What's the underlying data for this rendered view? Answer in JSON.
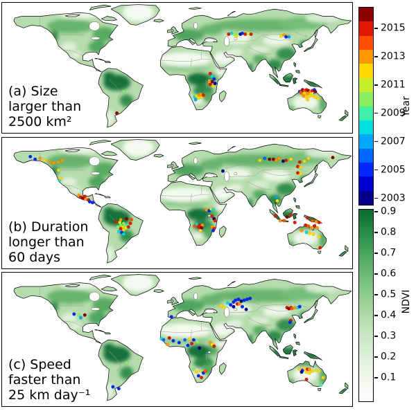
{
  "chart_data": {
    "type": "map-scatter",
    "projection": "equirectangular",
    "lon_range": [
      -180,
      180
    ],
    "lat_range": [
      -60,
      85
    ],
    "description": "Three world maps with NDVI background shading (greens) and event locations plotted as dots colored by year of occurrence.",
    "panels": [
      {
        "id": "a",
        "caption_lines": [
          "(a) Size",
          "larger than",
          "2500 km²"
        ],
        "dots": [
          [
            34,
            6,
            2015
          ],
          [
            36,
            3,
            2008
          ],
          [
            38,
            0,
            2005
          ],
          [
            36,
            -3,
            2016
          ],
          [
            34,
            -6,
            2015
          ],
          [
            37,
            -8,
            2012
          ],
          [
            33,
            -3,
            2013
          ],
          [
            39,
            -5,
            2003
          ],
          [
            18,
            -20,
            2008
          ],
          [
            20,
            -19,
            2012
          ],
          [
            23,
            -19,
            2013
          ],
          [
            25,
            -20,
            2012
          ],
          [
            22,
            -21,
            2012
          ],
          [
            19,
            -23,
            2007
          ],
          [
            27,
            -18,
            2015
          ],
          [
            24,
            -17,
            2013
          ],
          [
            -55,
            -14,
            2010
          ],
          [
            -62,
            -38,
            2016
          ],
          [
            53,
            50,
            2015
          ],
          [
            56,
            51,
            2008
          ],
          [
            59,
            50,
            2010
          ],
          [
            62,
            51,
            2010
          ],
          [
            65,
            50,
            2003
          ],
          [
            67,
            51,
            2005
          ],
          [
            70,
            50,
            2015
          ],
          [
            73,
            51,
            2011
          ],
          [
            61,
            48,
            2012
          ],
          [
            76,
            50,
            2015
          ],
          [
            107,
            48,
            2012
          ],
          [
            110,
            49,
            2013
          ],
          [
            113,
            48,
            2012
          ],
          [
            115,
            47,
            2007
          ],
          [
            112,
            47,
            2005
          ],
          [
            126,
            -14,
            2005
          ],
          [
            129,
            -12,
            2016
          ],
          [
            131,
            -13,
            2014
          ],
          [
            133,
            -12,
            2015
          ],
          [
            135,
            -13,
            2016
          ],
          [
            137,
            -14,
            2013
          ],
          [
            139,
            -13,
            2015
          ],
          [
            141,
            -12,
            2005
          ],
          [
            142,
            -14,
            2016
          ],
          [
            128,
            -16,
            2013
          ],
          [
            131,
            -16,
            2012
          ],
          [
            134,
            -16,
            2013
          ],
          [
            137,
            -17,
            2012
          ],
          [
            130,
            -19,
            2013
          ],
          [
            133,
            -20,
            2012
          ],
          [
            136,
            -19,
            2012
          ],
          [
            139,
            -18,
            2012
          ],
          [
            134,
            -23,
            2012
          ],
          [
            142,
            -20,
            2012
          ],
          [
            145,
            -22,
            2012
          ],
          [
            127,
            -15,
            2014
          ]
        ]
      },
      {
        "id": "b",
        "caption_lines": [
          "(b) Duration",
          "longer than",
          "60 days"
        ],
        "dots": [
          [
            -151,
            64,
            2005
          ],
          [
            -146,
            61,
            2005
          ],
          [
            -141,
            62,
            2013
          ],
          [
            -136,
            60,
            2012
          ],
          [
            -131,
            58,
            2013
          ],
          [
            -127,
            57,
            2013
          ],
          [
            -122,
            58,
            2013
          ],
          [
            -118,
            60,
            2013
          ],
          [
            -122,
            49,
            2012
          ],
          [
            -121,
            38,
            2008
          ],
          [
            -120,
            40,
            2012
          ],
          [
            -101,
            21,
            2013
          ],
          [
            -99,
            19,
            2015
          ],
          [
            -97,
            18,
            2016
          ],
          [
            -94,
            17,
            2013
          ],
          [
            -91,
            16,
            2015
          ],
          [
            -90,
            14,
            2005
          ],
          [
            -87,
            13,
            2005
          ],
          [
            -95,
            20,
            2015
          ],
          [
            -63,
            -8,
            2015
          ],
          [
            -58,
            -6,
            2013
          ],
          [
            -52,
            -5,
            2016
          ],
          [
            -55,
            -10,
            2010
          ],
          [
            -58,
            -12,
            2010
          ],
          [
            -54,
            -12,
            2010
          ],
          [
            -51,
            -12,
            2009
          ],
          [
            -56,
            -14,
            2012
          ],
          [
            -53,
            -15,
            2011
          ],
          [
            -50,
            -14,
            2015
          ],
          [
            -58,
            -16,
            2015
          ],
          [
            -55,
            -17,
            2012
          ],
          [
            -60,
            -19,
            2008
          ],
          [
            -57,
            -20,
            2005
          ],
          [
            -55,
            -22,
            2008
          ],
          [
            -48,
            -10,
            2015
          ],
          [
            -47,
            -6,
            2014
          ],
          [
            -61,
            -14,
            2010
          ],
          [
            -59,
            -9,
            2011
          ],
          [
            30,
            5,
            2013
          ],
          [
            33,
            4,
            2005
          ],
          [
            35,
            6,
            2012
          ],
          [
            37,
            5,
            2008
          ],
          [
            36,
            -2,
            2015
          ],
          [
            38,
            -5,
            2003
          ],
          [
            39,
            -7,
            2015
          ],
          [
            20,
            -11,
            2008
          ],
          [
            23,
            -12,
            2015
          ],
          [
            26,
            -12,
            2013
          ],
          [
            22,
            -14,
            2015
          ],
          [
            25,
            -15,
            2016
          ],
          [
            24,
            -18,
            2012
          ],
          [
            36,
            -14,
            2013
          ],
          [
            38,
            -16,
            2015
          ],
          [
            37,
            -18,
            2005
          ],
          [
            18,
            -13,
            2014
          ],
          [
            47,
            48,
            2003
          ],
          [
            85,
            60,
            2012
          ],
          [
            90,
            62,
            2006
          ],
          [
            95,
            61,
            2016
          ],
          [
            99,
            61,
            2016
          ],
          [
            102,
            60,
            2013
          ],
          [
            105,
            62,
            2013
          ],
          [
            109,
            59,
            2003
          ],
          [
            112,
            60,
            2015
          ],
          [
            117,
            61,
            2012
          ],
          [
            126,
            58,
            2015
          ],
          [
            131,
            59,
            2012
          ],
          [
            135,
            62,
            2012
          ],
          [
            160,
            63,
            2016
          ],
          [
            124,
            53,
            2015
          ],
          [
            127,
            52,
            2012
          ],
          [
            124,
            46,
            2015
          ],
          [
            127,
            45,
            2012
          ],
          [
            102,
            19,
            2007
          ],
          [
            103,
            15,
            2012
          ],
          [
            101,
            -2,
            2015
          ],
          [
            106,
            -7,
            2013
          ],
          [
            110,
            -7,
            2014
          ],
          [
            113,
            -3,
            2016
          ],
          [
            117,
            -1,
            2015
          ],
          [
            121,
            -9,
            2015
          ],
          [
            134,
            -4,
            2015
          ],
          [
            139,
            -7,
            2014
          ],
          [
            143,
            -8,
            2013
          ],
          [
            146,
            -9,
            2015
          ],
          [
            132,
            -12,
            2015
          ],
          [
            135,
            -13,
            2014
          ],
          [
            138,
            -15,
            2013
          ],
          [
            141,
            -13,
            2015
          ],
          [
            144,
            -15,
            2013
          ],
          [
            128,
            -18,
            2013
          ],
          [
            133,
            -20,
            2008
          ],
          [
            136,
            -21,
            2012
          ],
          [
            140,
            -22,
            2012
          ],
          [
            146,
            -25,
            2012
          ],
          [
            147,
            -37,
            2015
          ]
        ]
      },
      {
        "id": "c",
        "caption_lines": [
          "(c) Speed",
          "faster than",
          "25 km day⁻¹"
        ],
        "dots": [
          [
            -106,
            40,
            2005
          ],
          [
            -101,
            39,
            2010
          ],
          [
            -95,
            39,
            2016
          ],
          [
            -99,
            36,
            2007
          ],
          [
            -6,
            37,
            2005
          ],
          [
            -16,
            13,
            2008
          ],
          [
            -14,
            12,
            2006
          ],
          [
            -8,
            14,
            2015
          ],
          [
            -4,
            11,
            2005
          ],
          [
            -10,
            7,
            2013
          ],
          [
            2,
            9,
            2005
          ],
          [
            8,
            12,
            2006
          ],
          [
            13,
            13,
            2012
          ],
          [
            17,
            12,
            2005
          ],
          [
            21,
            10,
            2010
          ],
          [
            15,
            8,
            2015
          ],
          [
            23,
            3,
            2003
          ],
          [
            11,
            6,
            2005
          ],
          [
            34,
            9,
            2013
          ],
          [
            36,
            7,
            2012
          ],
          [
            38,
            5,
            2015
          ],
          [
            17,
            -20,
            2010
          ],
          [
            20,
            -23,
            2012
          ],
          [
            24,
            -22,
            2011
          ],
          [
            27,
            -24,
            2005
          ],
          [
            29,
            -22,
            2014
          ],
          [
            22,
            -27,
            2005
          ],
          [
            25,
            -29,
            2015
          ],
          [
            -52,
            -13,
            2010
          ],
          [
            -66,
            -39,
            2005
          ],
          [
            -60,
            -41,
            2005
          ],
          [
            48,
            47,
            2012
          ],
          [
            45,
            49,
            2012
          ],
          [
            52,
            52,
            2008
          ],
          [
            55,
            50,
            2005
          ],
          [
            58,
            53,
            2005
          ],
          [
            60,
            55,
            2005
          ],
          [
            63,
            56,
            2005
          ],
          [
            66,
            54,
            2003
          ],
          [
            69,
            55,
            2005
          ],
          [
            72,
            56,
            2005
          ],
          [
            75,
            57,
            2005
          ],
          [
            62,
            51,
            2015
          ],
          [
            64,
            51,
            2013
          ],
          [
            58,
            48,
            2003
          ],
          [
            67,
            48,
            2005
          ],
          [
            71,
            45,
            2003
          ],
          [
            113,
            47,
            2015
          ],
          [
            115,
            46,
            2016
          ],
          [
            117,
            47,
            2015
          ],
          [
            118,
            46,
            2014
          ],
          [
            121,
            47,
            2013
          ],
          [
            124,
            47,
            2008
          ],
          [
            126,
            48,
            2005
          ],
          [
            117,
            33,
            2015
          ],
          [
            116,
            31,
            2005
          ],
          [
            126,
            -20,
            2012
          ],
          [
            129,
            -21,
            2005
          ],
          [
            131,
            -19,
            2012
          ],
          [
            134,
            -20,
            2015
          ],
          [
            136,
            -20,
            2013
          ],
          [
            133,
            -23,
            2012
          ],
          [
            136,
            -24,
            2012
          ],
          [
            139,
            -22,
            2012
          ],
          [
            143,
            -21,
            2011
          ],
          [
            146,
            -22,
            2012
          ],
          [
            133,
            -31,
            2015
          ],
          [
            148,
            -37,
            2009
          ],
          [
            150,
            -29,
            2012
          ],
          [
            128,
            -23,
            2003
          ]
        ]
      }
    ],
    "colorbars": {
      "year": {
        "label": "Year",
        "year_min": 2003,
        "year_max": 2016,
        "ticks": [
          2015,
          2013,
          2011,
          2009,
          2007,
          2005,
          2003
        ],
        "palette_bottom_to_top": [
          "#00008c",
          "#0000d0",
          "#0028ff",
          "#0068ff",
          "#00a8ff",
          "#00e0e0",
          "#40f0a8",
          "#88f060",
          "#c8f028",
          "#ffd800",
          "#ff9800",
          "#ff5000",
          "#e41800",
          "#8c0000"
        ]
      },
      "ndvi": {
        "label": "NDVI",
        "value_min": 0.0,
        "value_max": 0.93,
        "ticks": [
          0.9,
          0.8,
          0.7,
          0.6,
          0.5,
          0.4,
          0.3,
          0.2,
          0.1
        ],
        "gradient_bottom_to_top": [
          "#fbfdfa",
          "#f0f8ed",
          "#e0f1db",
          "#cbe8c4",
          "#b0dca8",
          "#8fcc8c",
          "#6aba70",
          "#45a65b",
          "#238b45",
          "#0a6b31"
        ]
      }
    },
    "map_colors": {
      "ocean": "#ffffff",
      "land_base": "#b5dcac",
      "coastline": "#000000",
      "country_border": "#9a9a9a"
    }
  }
}
